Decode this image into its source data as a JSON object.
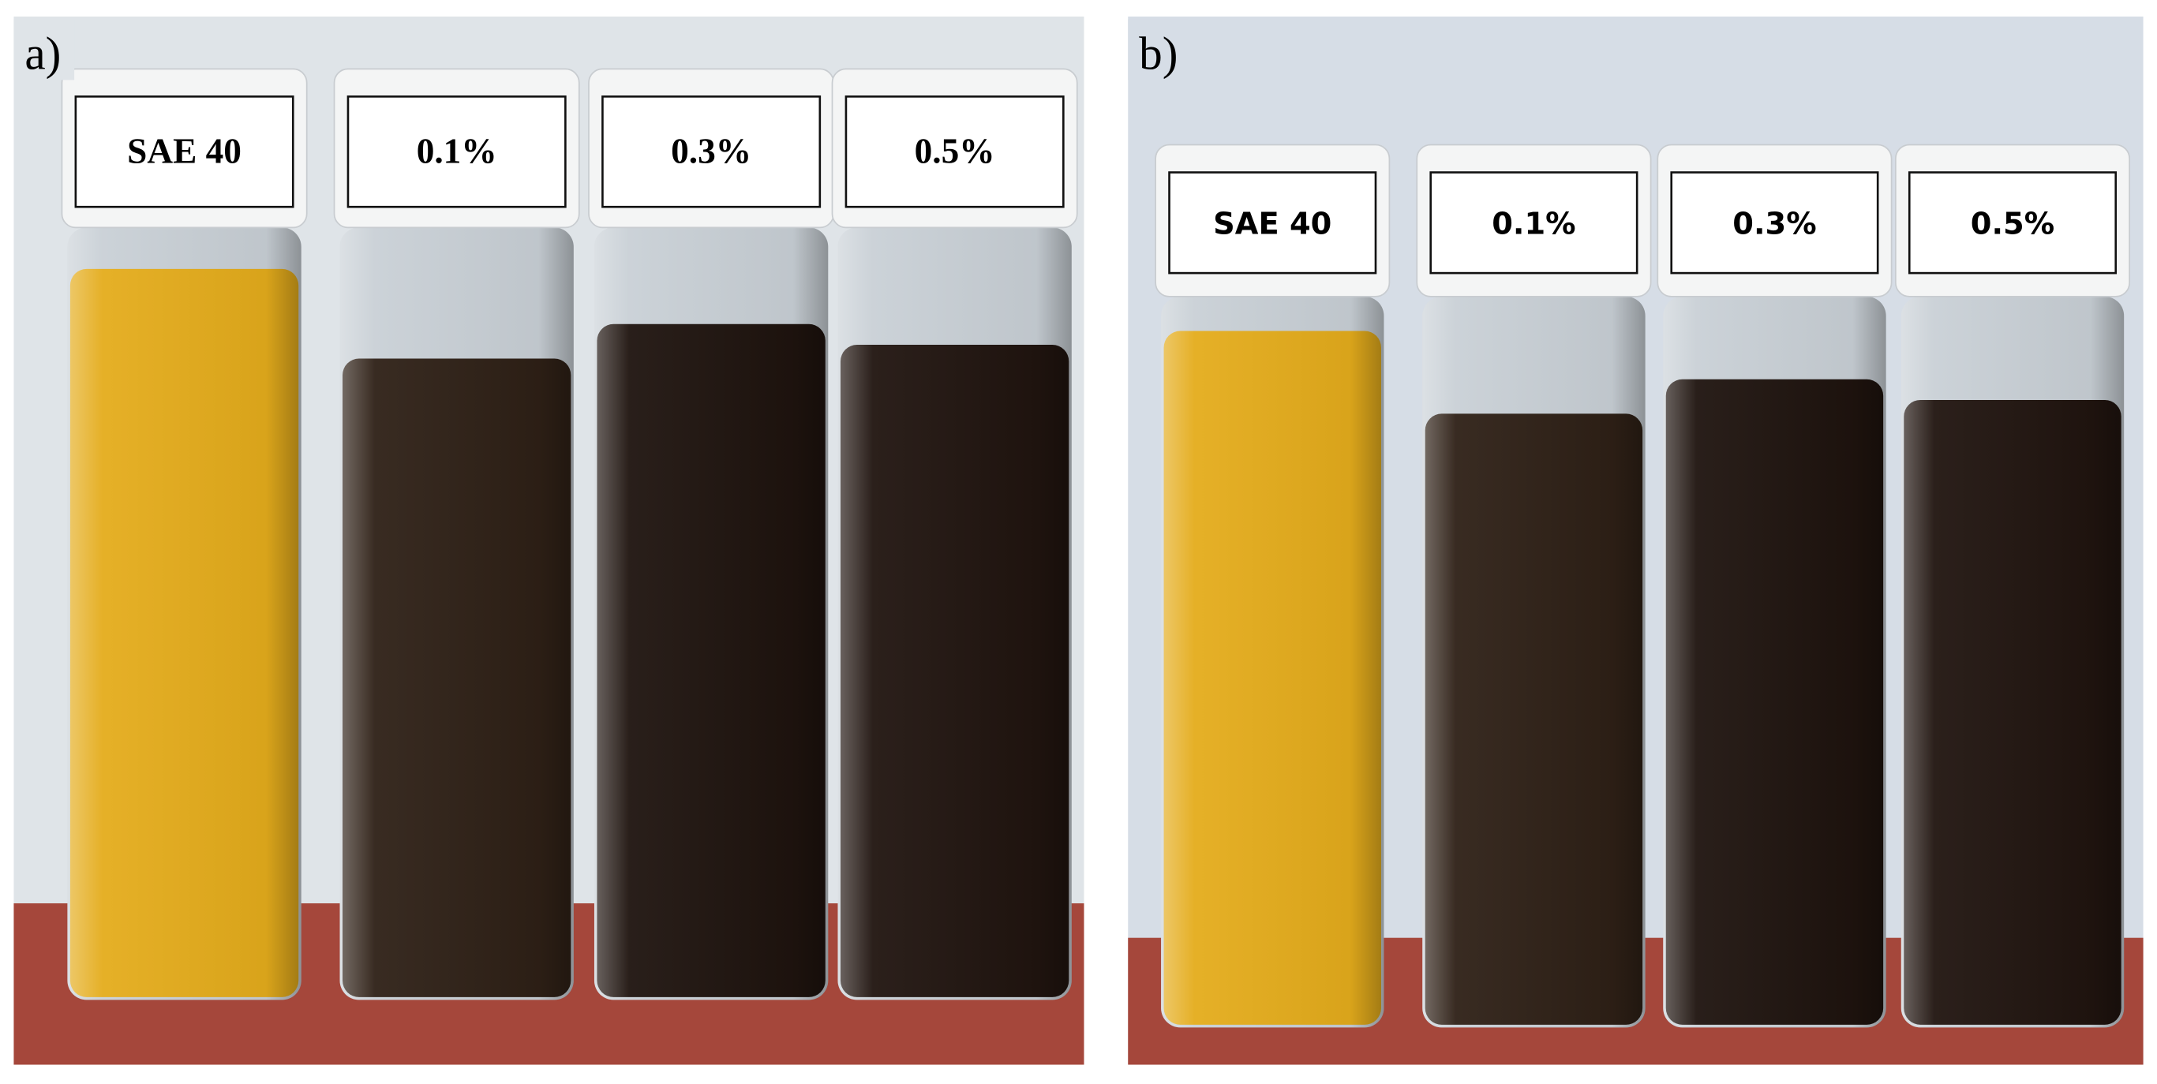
{
  "panels": [
    {
      "label": "a)",
      "vials": [
        "SAE 40",
        "0.1%",
        "0.3%",
        "0.5%"
      ]
    },
    {
      "label": "b)",
      "vials": [
        "SAE 40",
        "0.1%",
        "0.3%",
        "0.5%"
      ]
    }
  ]
}
